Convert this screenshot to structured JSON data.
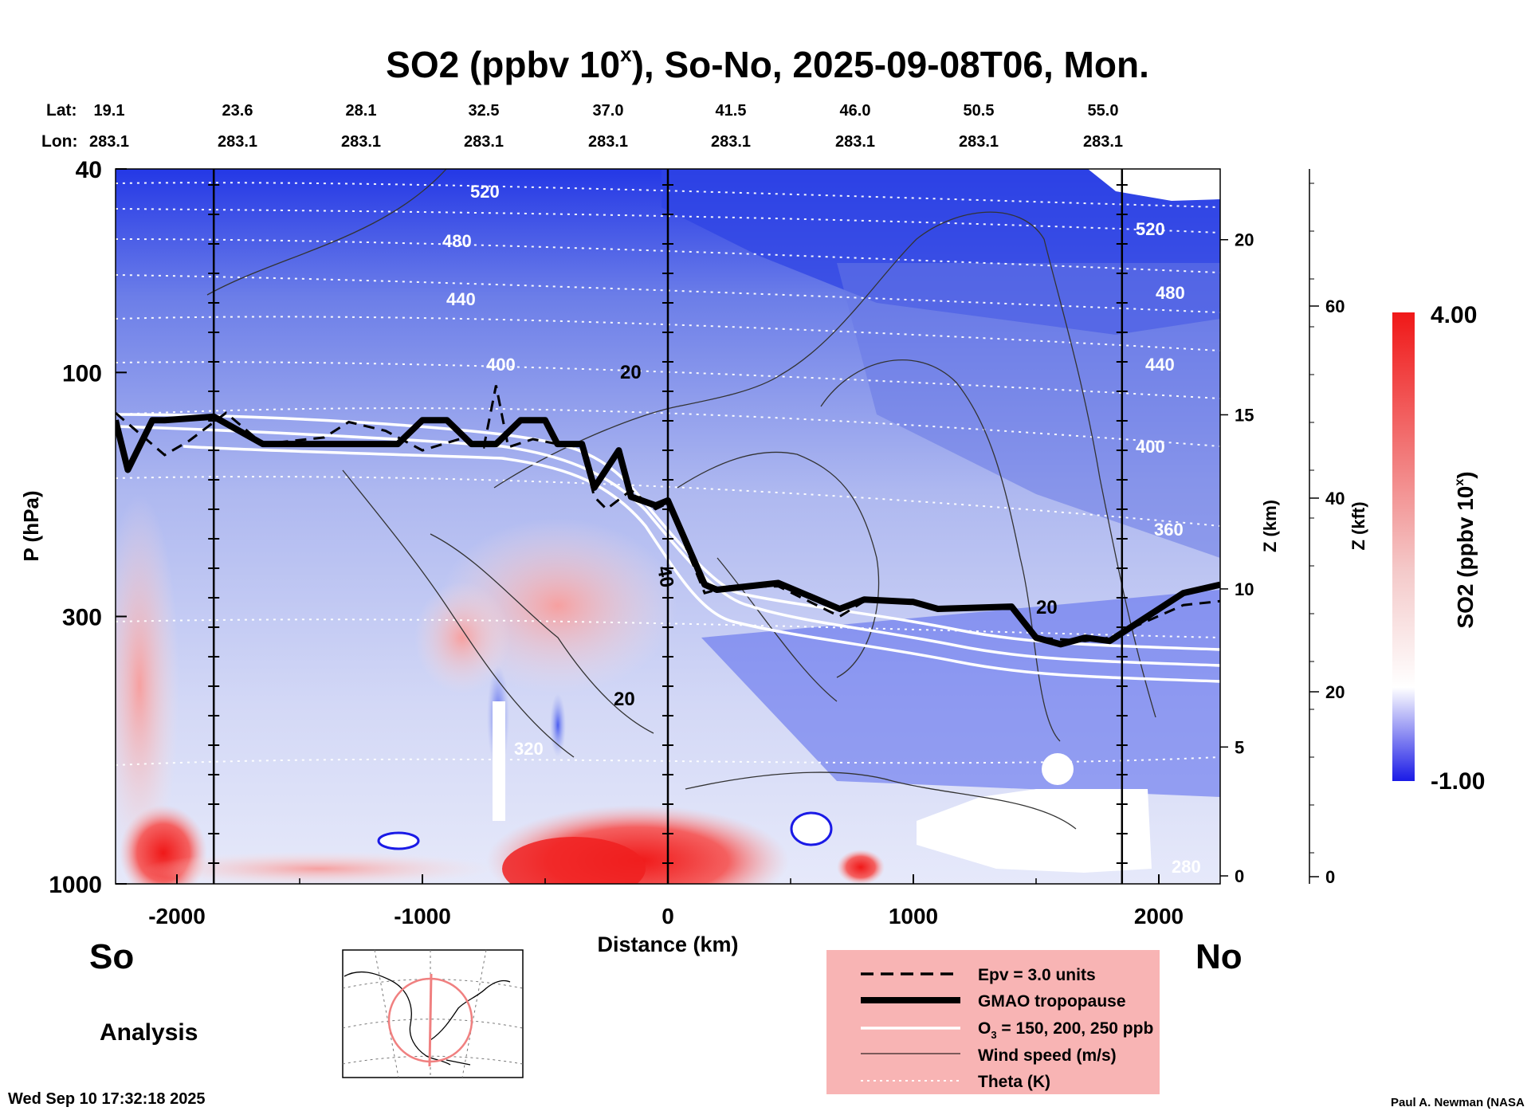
{
  "title": {
    "main": "SO2 (ppbv 10",
    "sup": "x",
    "rest": "), So-No, 2025-09-08T06, Mon."
  },
  "lat_label": "Lat:",
  "lon_label": "Lon:",
  "stations": [
    {
      "lat": "19.1",
      "lon": "283.1"
    },
    {
      "lat": "23.6",
      "lon": "283.1"
    },
    {
      "lat": "28.1",
      "lon": "283.1"
    },
    {
      "lat": "32.5",
      "lon": "283.1"
    },
    {
      "lat": "37.0",
      "lon": "283.1"
    },
    {
      "lat": "41.5",
      "lon": "283.1"
    },
    {
      "lat": "46.0",
      "lon": "283.1"
    },
    {
      "lat": "50.5",
      "lon": "283.1"
    },
    {
      "lat": "55.0",
      "lon": "283.1"
    }
  ],
  "axes": {
    "x_label": "Distance (km)",
    "x_ticks": [
      "-2000",
      "-1000",
      "0",
      "1000",
      "2000"
    ],
    "y_label": "P (hPa)",
    "y_ticks": [
      "40",
      "100",
      "300",
      "1000"
    ],
    "z_km_label": "Z (km)",
    "z_km_ticks": [
      "20",
      "15",
      "10",
      "5",
      "0"
    ],
    "z_kft_label": "Z (kft)",
    "z_kft_ticks": [
      "60",
      "40",
      "20",
      "0"
    ]
  },
  "colorbar": {
    "label_main": "SO2 (ppbv 10",
    "label_sup": "x",
    "label_end": ")",
    "max": "4.00",
    "min": "-1.00",
    "color_low": "#1a1ae6",
    "color_mid": "#ffffff",
    "color_high": "#f01818"
  },
  "directions": {
    "south": "So",
    "north": "No"
  },
  "analysis_label": "Analysis",
  "legend": {
    "background": "#f8b4b4",
    "items": [
      {
        "style": "dashed",
        "label": "Epv = 3.0 units"
      },
      {
        "style": "thick",
        "label": "GMAO tropopause"
      },
      {
        "style": "white",
        "label_main": "O",
        "label_sub": "3",
        "label_end": " = 150, 200, 250 ppb"
      },
      {
        "style": "thin",
        "label": "Wind speed (m/s)"
      },
      {
        "style": "dotted",
        "label": "Theta (K)"
      }
    ]
  },
  "timestamp": "Wed Sep 10 17:32:18 2025",
  "credit": "Paul A. Newman (NASA",
  "chart_data": {
    "type": "heatmap",
    "title": "SO2 (ppbv 10^x), So-No, 2025-09-08T06, Mon.",
    "xlabel": "Distance (km)",
    "ylabel": "P (hPa)",
    "xlim": [
      -2250,
      2250
    ],
    "ylim_hpa": [
      1000,
      40
    ],
    "y_scale": "log",
    "colorbar_range": [
      -1.0,
      4.0
    ],
    "station_lines_km": [
      -1850,
      0,
      1850
    ],
    "tropopause": {
      "x": [
        -2250,
        -2200,
        -2100,
        -2050,
        -1850,
        -1650,
        -1100,
        -1000,
        -900,
        -800,
        -700,
        -600,
        -500,
        -450,
        -350,
        -300,
        -200,
        -150,
        -50,
        0,
        150,
        200,
        450,
        700,
        800,
        1000,
        1100,
        1400,
        1500,
        1600,
        1700,
        1800,
        2100,
        2250
      ],
      "p": [
        124,
        155,
        124,
        124,
        122,
        138,
        138,
        124,
        124,
        138,
        138,
        124,
        124,
        138,
        138,
        168,
        142,
        175,
        182,
        178,
        260,
        266,
        258,
        290,
        278,
        281,
        290,
        287,
        330,
        340,
        330,
        335,
        270,
        260
      ]
    },
    "epv_3": {
      "x": [
        -2250,
        -2050,
        -1950,
        -1800,
        -1650,
        -1400,
        -1300,
        -1150,
        -1000,
        -850,
        -750,
        -700,
        -650,
        -550,
        -450,
        -350,
        -300,
        -250,
        -150,
        -50,
        0,
        150,
        250,
        450,
        700,
        800,
        1000,
        1100,
        1400,
        1500,
        1700,
        1800,
        2100,
        2250
      ],
      "p": [
        120,
        145,
        136,
        120,
        138,
        134,
        125,
        130,
        142,
        135,
        140,
        106,
        140,
        135,
        138,
        140,
        175,
        185,
        170,
        185,
        180,
        270,
        262,
        262,
        300,
        280,
        283,
        290,
        290,
        330,
        335,
        330,
        285,
        280
      ]
    },
    "wind_speed_levels_ms": [
      20,
      40
    ],
    "theta_levels_k": [
      280,
      320,
      360,
      400,
      440,
      480,
      520
    ],
    "o3_levels_ppb": [
      150,
      200,
      250
    ],
    "epv_units": 3.0
  }
}
